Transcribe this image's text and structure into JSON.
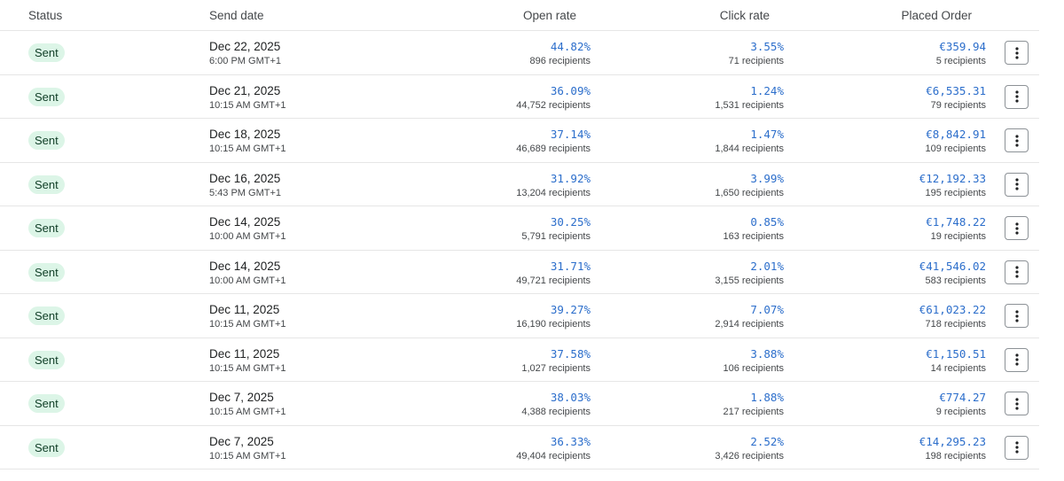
{
  "headers": {
    "status": "Status",
    "send_date": "Send date",
    "open_rate": "Open rate",
    "click_rate": "Click rate",
    "placed_order": "Placed Order"
  },
  "colors": {
    "link_blue": "#2c6ecb",
    "badge_bg": "#dcf5e7",
    "badge_text": "#0f3d26"
  },
  "rows": [
    {
      "status": "Sent",
      "date": "Dec 22, 2025",
      "time": "6:00 PM GMT+1",
      "open_rate": "44.82%",
      "open_recipients": "896 recipients",
      "click_rate": "3.55%",
      "click_recipients": "71 recipients",
      "order_value": "€359.94",
      "order_recipients": "5 recipients",
      "menu_icon": "more-vertical-icon"
    },
    {
      "status": "Sent",
      "date": "Dec 21, 2025",
      "time": "10:15 AM GMT+1",
      "open_rate": "36.09%",
      "open_recipients": "44,752 recipients",
      "click_rate": "1.24%",
      "click_recipients": "1,531 recipients",
      "order_value": "€6,535.31",
      "order_recipients": "79 recipients",
      "menu_icon": "more-vertical-icon"
    },
    {
      "status": "Sent",
      "date": "Dec 18, 2025",
      "time": "10:15 AM GMT+1",
      "open_rate": "37.14%",
      "open_recipients": "46,689 recipients",
      "click_rate": "1.47%",
      "click_recipients": "1,844 recipients",
      "order_value": "€8,842.91",
      "order_recipients": "109 recipients",
      "menu_icon": "more-vertical-icon"
    },
    {
      "status": "Sent",
      "date": "Dec 16, 2025",
      "time": "5:43 PM GMT+1",
      "open_rate": "31.92%",
      "open_recipients": "13,204 recipients",
      "click_rate": "3.99%",
      "click_recipients": "1,650 recipients",
      "order_value": "€12,192.33",
      "order_recipients": "195 recipients",
      "menu_icon": "more-vertical-icon"
    },
    {
      "status": "Sent",
      "date": "Dec 14, 2025",
      "time": "10:00 AM GMT+1",
      "open_rate": "30.25%",
      "open_recipients": "5,791 recipients",
      "click_rate": "0.85%",
      "click_recipients": "163 recipients",
      "order_value": "€1,748.22",
      "order_recipients": "19 recipients",
      "menu_icon": "more-vertical-icon"
    },
    {
      "status": "Sent",
      "date": "Dec 14, 2025",
      "time": "10:00 AM GMT+1",
      "open_rate": "31.71%",
      "open_recipients": "49,721 recipients",
      "click_rate": "2.01%",
      "click_recipients": "3,155 recipients",
      "order_value": "€41,546.02",
      "order_recipients": "583 recipients",
      "menu_icon": "more-vertical-icon"
    },
    {
      "status": "Sent",
      "date": "Dec 11, 2025",
      "time": "10:15 AM GMT+1",
      "open_rate": "39.27%",
      "open_recipients": "16,190 recipients",
      "click_rate": "7.07%",
      "click_recipients": "2,914 recipients",
      "order_value": "€61,023.22",
      "order_recipients": "718 recipients",
      "menu_icon": "more-vertical-icon"
    },
    {
      "status": "Sent",
      "date": "Dec 11, 2025",
      "time": "10:15 AM GMT+1",
      "open_rate": "37.58%",
      "open_recipients": "1,027 recipients",
      "click_rate": "3.88%",
      "click_recipients": "106 recipients",
      "order_value": "€1,150.51",
      "order_recipients": "14 recipients",
      "menu_icon": "more-vertical-icon"
    },
    {
      "status": "Sent",
      "date": "Dec 7, 2025",
      "time": "10:15 AM GMT+1",
      "open_rate": "38.03%",
      "open_recipients": "4,388 recipients",
      "click_rate": "1.88%",
      "click_recipients": "217 recipients",
      "order_value": "€774.27",
      "order_recipients": "9 recipients",
      "menu_icon": "more-vertical-icon"
    },
    {
      "status": "Sent",
      "date": "Dec 7, 2025",
      "time": "10:15 AM GMT+1",
      "open_rate": "36.33%",
      "open_recipients": "49,404 recipients",
      "click_rate": "2.52%",
      "click_recipients": "3,426 recipients",
      "order_value": "€14,295.23",
      "order_recipients": "198 recipients",
      "menu_icon": "more-vertical-icon"
    }
  ]
}
